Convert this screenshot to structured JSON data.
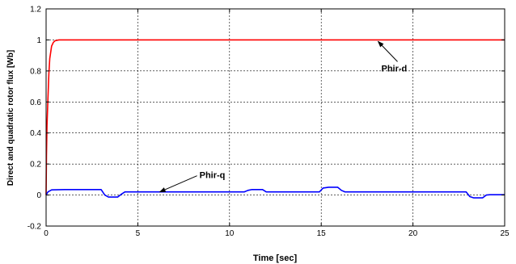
{
  "chart_data": {
    "type": "line",
    "title": "",
    "xlabel": "Time [sec]",
    "ylabel": "Direct and quadratic rotor flux [Wb]",
    "xlim": [
      0,
      25
    ],
    "ylim": [
      -0.2,
      1.2
    ],
    "xticks": [
      0,
      5,
      10,
      15,
      20,
      25
    ],
    "xtick_labels": [
      "0",
      "5",
      "10",
      "15",
      "20",
      "25"
    ],
    "yticks": [
      -0.2,
      0,
      0.2,
      0.4,
      0.6,
      0.8,
      1,
      1.2
    ],
    "ytick_labels": [
      "-0.2",
      "0",
      "0.2",
      "0.4",
      "0.6",
      "0.8",
      "1",
      "1.2"
    ],
    "grid": true,
    "annotations": [
      {
        "text": "Phir-d",
        "series": "Phir-d",
        "x": 18.1,
        "y": 0.99
      },
      {
        "text": "Phir-q",
        "series": "Phir-q",
        "x": 6.2,
        "y": 0.02
      }
    ],
    "series": [
      {
        "name": "Phir-d",
        "color": "#ff0000",
        "points": [
          [
            0,
            0
          ],
          [
            0.02,
            0.25
          ],
          [
            0.05,
            0.45
          ],
          [
            0.1,
            0.62
          ],
          [
            0.15,
            0.78
          ],
          [
            0.2,
            0.88
          ],
          [
            0.3,
            0.96
          ],
          [
            0.4,
            0.985
          ],
          [
            0.5,
            0.995
          ],
          [
            0.7,
            1.0
          ],
          [
            1,
            1.0
          ],
          [
            5,
            1.0
          ],
          [
            10,
            1.0
          ],
          [
            15,
            1.0
          ],
          [
            20,
            1.0
          ],
          [
            25,
            1.0
          ]
        ]
      },
      {
        "name": "Phir-q",
        "color": "#0000ff",
        "points": [
          [
            0,
            0
          ],
          [
            0.1,
            0.02
          ],
          [
            0.3,
            0.033
          ],
          [
            1,
            0.035
          ],
          [
            2,
            0.035
          ],
          [
            3.0,
            0.035
          ],
          [
            3.2,
            0.0
          ],
          [
            3.4,
            -0.013
          ],
          [
            3.9,
            -0.013
          ],
          [
            4.1,
            0.005
          ],
          [
            4.3,
            0.02
          ],
          [
            5,
            0.02
          ],
          [
            8,
            0.02
          ],
          [
            10.8,
            0.02
          ],
          [
            11.0,
            0.03
          ],
          [
            11.2,
            0.035
          ],
          [
            11.8,
            0.035
          ],
          [
            12.0,
            0.02
          ],
          [
            13,
            0.02
          ],
          [
            14.9,
            0.02
          ],
          [
            15.1,
            0.045
          ],
          [
            15.4,
            0.05
          ],
          [
            15.9,
            0.05
          ],
          [
            16.1,
            0.03
          ],
          [
            16.3,
            0.02
          ],
          [
            18,
            0.02
          ],
          [
            20,
            0.02
          ],
          [
            22,
            0.02
          ],
          [
            22.9,
            0.02
          ],
          [
            23.1,
            -0.01
          ],
          [
            23.3,
            -0.018
          ],
          [
            23.8,
            -0.018
          ],
          [
            24.0,
            0.0
          ],
          [
            24.2,
            0.002
          ],
          [
            25,
            0.002
          ]
        ]
      }
    ]
  }
}
